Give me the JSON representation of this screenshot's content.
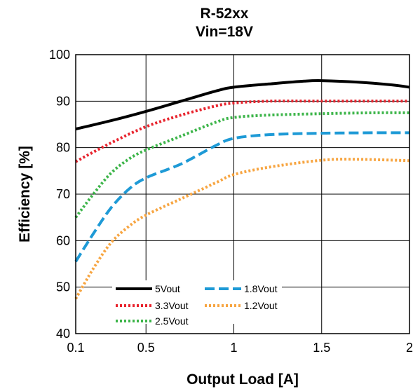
{
  "chart_data": {
    "type": "line",
    "title": "R-52xx",
    "subtitle": "Vin=18V",
    "xlabel": "Output Load [A]",
    "ylabel": "Efficiency [%]",
    "xlim": [
      0.1,
      2
    ],
    "ylim": [
      40,
      100
    ],
    "x_ticks": [
      0.1,
      0.5,
      1,
      1.5,
      2
    ],
    "x_tick_labels": [
      "0.1",
      "0.5",
      "1",
      "1.5",
      "2"
    ],
    "y_ticks": [
      40,
      50,
      60,
      70,
      80,
      90,
      100
    ],
    "y_tick_labels": [
      "40",
      "50",
      "60",
      "70",
      "80",
      "90",
      "100"
    ],
    "grid": true,
    "legend_position": "bottom-left",
    "series": [
      {
        "name": "5Vout",
        "color": "#000000",
        "style": "solid",
        "x": [
          0.1,
          0.3,
          0.5,
          0.7,
          0.9,
          1.0,
          1.2,
          1.4,
          1.5,
          1.7,
          1.9,
          2.0
        ],
        "y": [
          84.0,
          85.8,
          87.8,
          90.0,
          92.2,
          93.0,
          93.7,
          94.3,
          94.4,
          94.1,
          93.5,
          93.0
        ]
      },
      {
        "name": "3.3Vout",
        "color": "#e8242e",
        "style": "dotted",
        "x": [
          0.1,
          0.3,
          0.5,
          0.7,
          0.9,
          1.0,
          1.2,
          1.5,
          1.8,
          2.0
        ],
        "y": [
          77.0,
          81.0,
          84.5,
          87.0,
          89.0,
          89.6,
          90.0,
          90.0,
          90.0,
          90.0
        ]
      },
      {
        "name": "2.5Vout",
        "color": "#3db54a",
        "style": "dotted",
        "x": [
          0.1,
          0.2,
          0.3,
          0.4,
          0.5,
          0.7,
          0.9,
          1.0,
          1.2,
          1.5,
          1.8,
          2.0
        ],
        "y": [
          65.0,
          70.0,
          74.5,
          77.5,
          79.5,
          82.5,
          85.5,
          86.5,
          87.0,
          87.3,
          87.5,
          87.5
        ]
      },
      {
        "name": "1.8Vout",
        "color": "#1e9ad6",
        "style": "dashed",
        "x": [
          0.1,
          0.2,
          0.3,
          0.4,
          0.5,
          0.7,
          0.9,
          1.0,
          1.2,
          1.5,
          1.8,
          2.0
        ],
        "y": [
          55.5,
          61.5,
          67.0,
          71.0,
          73.5,
          76.5,
          80.5,
          82.0,
          82.8,
          83.1,
          83.2,
          83.2
        ]
      },
      {
        "name": "1.2Vout",
        "color": "#f7a541",
        "style": "dotted",
        "x": [
          0.1,
          0.2,
          0.3,
          0.4,
          0.5,
          0.7,
          0.9,
          1.0,
          1.2,
          1.5,
          1.7,
          2.0
        ],
        "y": [
          47.5,
          54.0,
          59.5,
          63.0,
          65.5,
          69.0,
          72.5,
          74.2,
          75.8,
          77.3,
          77.5,
          77.2
        ]
      }
    ]
  }
}
